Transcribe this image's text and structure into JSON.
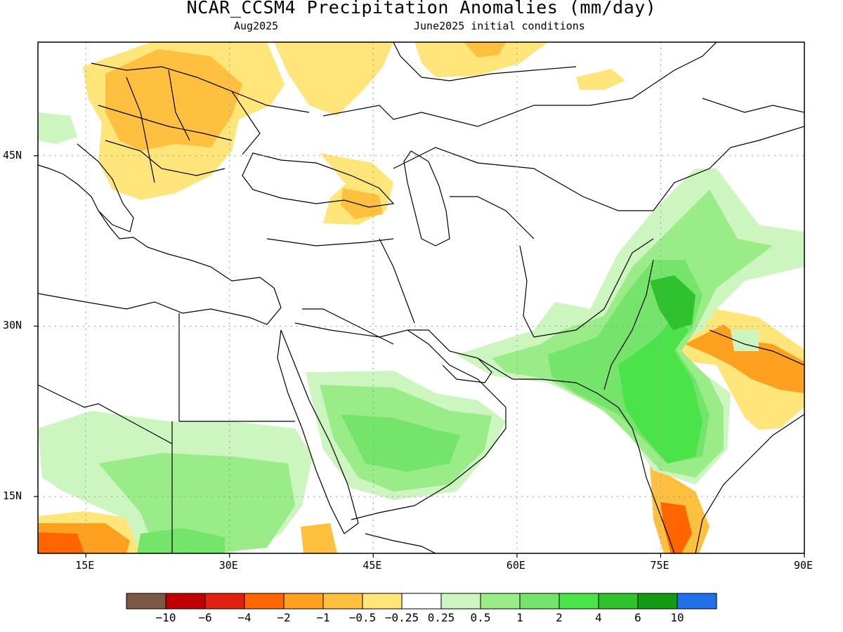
{
  "title": "NCAR_CCSM4 Precipitation Anomalies (mm/day)",
  "subtitle_left": "Aug2025",
  "subtitle_right": "June2025 initial conditions",
  "map": {
    "lon_range": [
      10,
      90
    ],
    "lat_range": [
      10,
      55
    ],
    "lon_ticks": [
      {
        "value": 15,
        "label": "15E"
      },
      {
        "value": 30,
        "label": "30E"
      },
      {
        "value": 45,
        "label": "45E"
      },
      {
        "value": 60,
        "label": "60E"
      },
      {
        "value": 75,
        "label": "75E"
      },
      {
        "value": 90,
        "label": "90E"
      }
    ],
    "lat_ticks": [
      {
        "value": 45,
        "label": "45N"
      },
      {
        "value": 30,
        "label": "30N"
      },
      {
        "value": 15,
        "label": "15N"
      }
    ],
    "grid": "dotted"
  },
  "colorbar": {
    "labels": [
      "−10",
      "−6",
      "−4",
      "−2",
      "−1",
      "−0.5",
      "−0.25",
      "0.25",
      "0.5",
      "1",
      "2",
      "4",
      "6",
      "10"
    ],
    "colors": [
      "#7b5746",
      "#c00000",
      "#e02010",
      "#ff6600",
      "#ffa020",
      "#ffc040",
      "#ffe57a",
      "#ffffff",
      "#ccf5c0",
      "#99ec88",
      "#74e46a",
      "#4be34a",
      "#2fc22d",
      "#149b14",
      "#2070e8"
    ]
  },
  "colors": {
    "neg_light": "#ffe57a",
    "neg_mid": "#ffc040",
    "neg_strong": "#ffa020",
    "neg_vstrong": "#ff6600",
    "neg_extreme": "#e02010",
    "pos_light": "#ccf5c0",
    "pos_mid": "#99ec88",
    "pos_strong": "#74e46a",
    "pos_vstrong": "#4be34a",
    "pos_extreme": "#2fc22d"
  }
}
